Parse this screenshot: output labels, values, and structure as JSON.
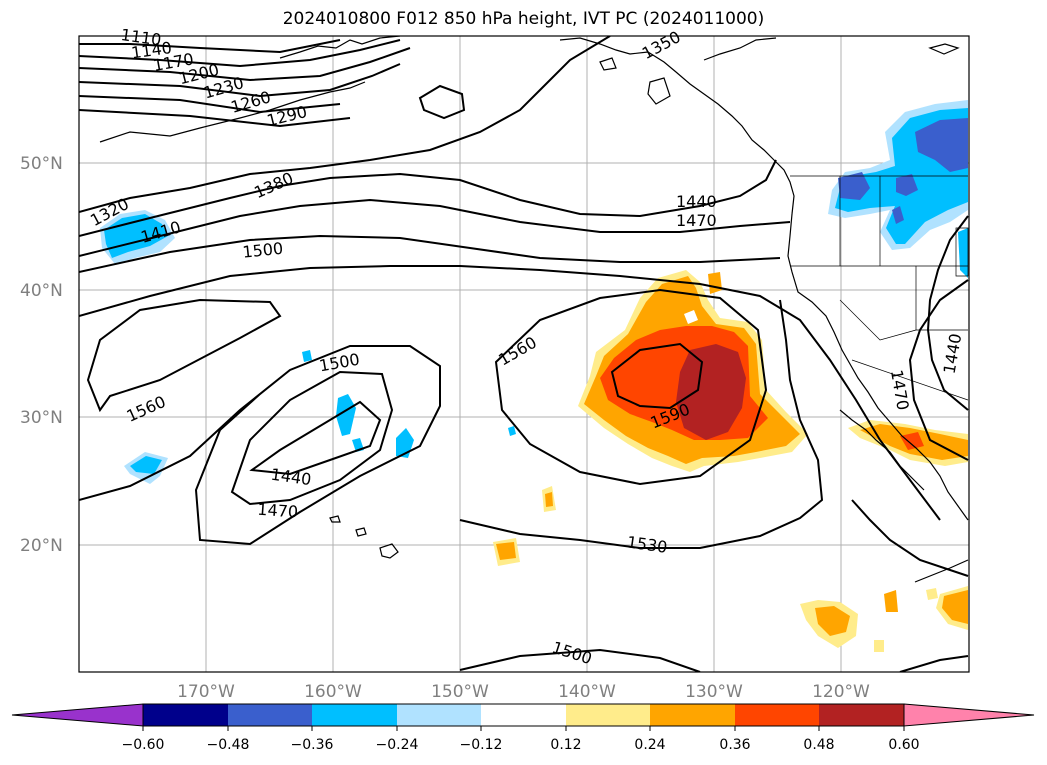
{
  "title": "2024010800 F012 850 hPa height, IVT PC (2024011000)",
  "lat_labels": [
    "50°N",
    "40°N",
    "30°N",
    "20°N"
  ],
  "lon_labels": [
    "170°W",
    "160°W",
    "150°W",
    "140°W",
    "130°W",
    "120°W"
  ],
  "contour_labels": [
    "1110",
    "1140",
    "1170",
    "1200",
    "1230",
    "1260",
    "1290",
    "1320",
    "1350",
    "1380",
    "1410",
    "1440",
    "1470",
    "1500",
    "1530",
    "1560",
    "1590",
    "1440",
    "1470",
    "1500",
    "1560",
    "1500",
    "1440",
    "1470",
    "1470",
    "1440",
    "1530",
    "1500"
  ],
  "colorbar": {
    "ticks": [
      "−0.60",
      "−0.48",
      "−0.36",
      "−0.24",
      "−0.12",
      "0.12",
      "0.24",
      "0.36",
      "0.48",
      "0.60"
    ],
    "colors": [
      "#9932cc",
      "#00008b",
      "#3a5fcd",
      "#00bfff",
      "#b0e2ff",
      "#ffffff",
      "#ffec8b",
      "#ffa500",
      "#ff4500",
      "#b22222",
      "#ff82ab"
    ]
  }
}
